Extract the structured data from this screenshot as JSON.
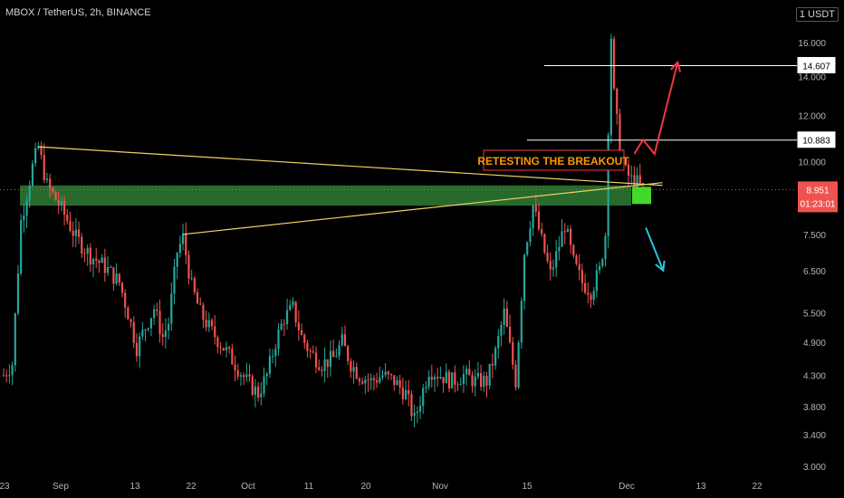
{
  "header": {
    "title": "MBOX / TetherUS, 2h, BINANCE",
    "currency": "1 USDT"
  },
  "annotation": {
    "text": "RETESTING THE BREAKOUT"
  },
  "price_labels": {
    "level_high": "14.607",
    "level_mid": "10.883",
    "current_price": "8.951",
    "countdown": "01:23:01"
  },
  "colors": {
    "up": "#26a69a",
    "down": "#ef5350",
    "zone": "#2e7d32",
    "trendline": "#f0d264",
    "annotation": "#ff9800",
    "arrow_up": "#f23645",
    "arrow_down": "#26c6da",
    "current_price_bg": "#ef5350",
    "entry_box": "#43d82a"
  },
  "chart_data": {
    "type": "candlestick",
    "ylabel": "",
    "xlabel": "",
    "y_scale": "log",
    "ylim": [
      2.9,
      20.0
    ],
    "y_ticks": [
      "16.000",
      "14.000",
      "12.000",
      "10.000",
      "7.500",
      "6.500",
      "5.500",
      "4.900",
      "4.300",
      "3.800",
      "3.400",
      "3.000"
    ],
    "x_ticks": [
      "23",
      "Sep",
      "13",
      "22",
      "Oct",
      "11",
      "20",
      "Nov",
      "15",
      "Dec",
      "13",
      "22"
    ],
    "close_path": [
      [
        0,
        4.3
      ],
      [
        3,
        4.5
      ],
      [
        6,
        7.9
      ],
      [
        10,
        9.8
      ],
      [
        12,
        10.6
      ],
      [
        15,
        9.1
      ],
      [
        20,
        8.3
      ],
      [
        25,
        7.4
      ],
      [
        30,
        6.9
      ],
      [
        35,
        6.6
      ],
      [
        40,
        6.2
      ],
      [
        43,
        5.5
      ],
      [
        46,
        4.8
      ],
      [
        49,
        5.2
      ],
      [
        52,
        5.6
      ],
      [
        55,
        5.0
      ],
      [
        57,
        5.3
      ],
      [
        60,
        7.0
      ],
      [
        62,
        7.4
      ],
      [
        65,
        6.1
      ],
      [
        68,
        5.5
      ],
      [
        72,
        5.1
      ],
      [
        76,
        4.8
      ],
      [
        80,
        4.5
      ],
      [
        84,
        4.2
      ],
      [
        88,
        4.0
      ],
      [
        91,
        4.3
      ],
      [
        94,
        4.9
      ],
      [
        97,
        5.4
      ],
      [
        100,
        5.6
      ],
      [
        103,
        5.0
      ],
      [
        106,
        4.7
      ],
      [
        110,
        4.5
      ],
      [
        114,
        4.6
      ],
      [
        117,
        4.9
      ],
      [
        120,
        4.5
      ],
      [
        123,
        4.3
      ],
      [
        127,
        4.2
      ],
      [
        131,
        4.3
      ],
      [
        135,
        4.2
      ],
      [
        139,
        4.0
      ],
      [
        142,
        3.6
      ],
      [
        144,
        3.9
      ],
      [
        147,
        4.4
      ],
      [
        151,
        4.3
      ],
      [
        155,
        4.2
      ],
      [
        159,
        4.3
      ],
      [
        163,
        4.2
      ],
      [
        167,
        4.2
      ],
      [
        170,
        4.7
      ],
      [
        173,
        5.5
      ],
      [
        175,
        4.8
      ],
      [
        177,
        4.2
      ],
      [
        180,
        7.0
      ],
      [
        183,
        8.4
      ],
      [
        186,
        7.3
      ],
      [
        189,
        6.4
      ],
      [
        191,
        6.9
      ],
      [
        194,
        7.8
      ],
      [
        197,
        6.7
      ],
      [
        200,
        6.2
      ],
      [
        203,
        6.0
      ],
      [
        206,
        6.5
      ],
      [
        208,
        7.5
      ],
      [
        209,
        11.5
      ],
      [
        210,
        16.4
      ],
      [
        211,
        13.0
      ],
      [
        213,
        10.5
      ],
      [
        215,
        9.6
      ],
      [
        217,
        9.3
      ],
      [
        219,
        9.2
      ],
      [
        221,
        8.951
      ]
    ],
    "horizontal_levels": [
      14.607,
      10.883
    ],
    "support_zone": [
      8.4,
      9.1
    ],
    "current_price": 8.951,
    "trendlines": [
      {
        "from": [
          12,
          10.6
        ],
        "to": [
          224,
          9.1
        ]
      },
      {
        "from": [
          62,
          7.5
        ],
        "to": [
          224,
          9.2
        ]
      }
    ],
    "projections": [
      {
        "direction": "up",
        "path": [
          [
            218,
            10.3
          ],
          [
            221,
            10.9
          ],
          [
            225,
            10.3
          ],
          [
            233,
            14.8
          ]
        ]
      },
      {
        "direction": "down",
        "path": [
          [
            222,
            7.7
          ],
          [
            228,
            6.5
          ]
        ]
      }
    ]
  }
}
